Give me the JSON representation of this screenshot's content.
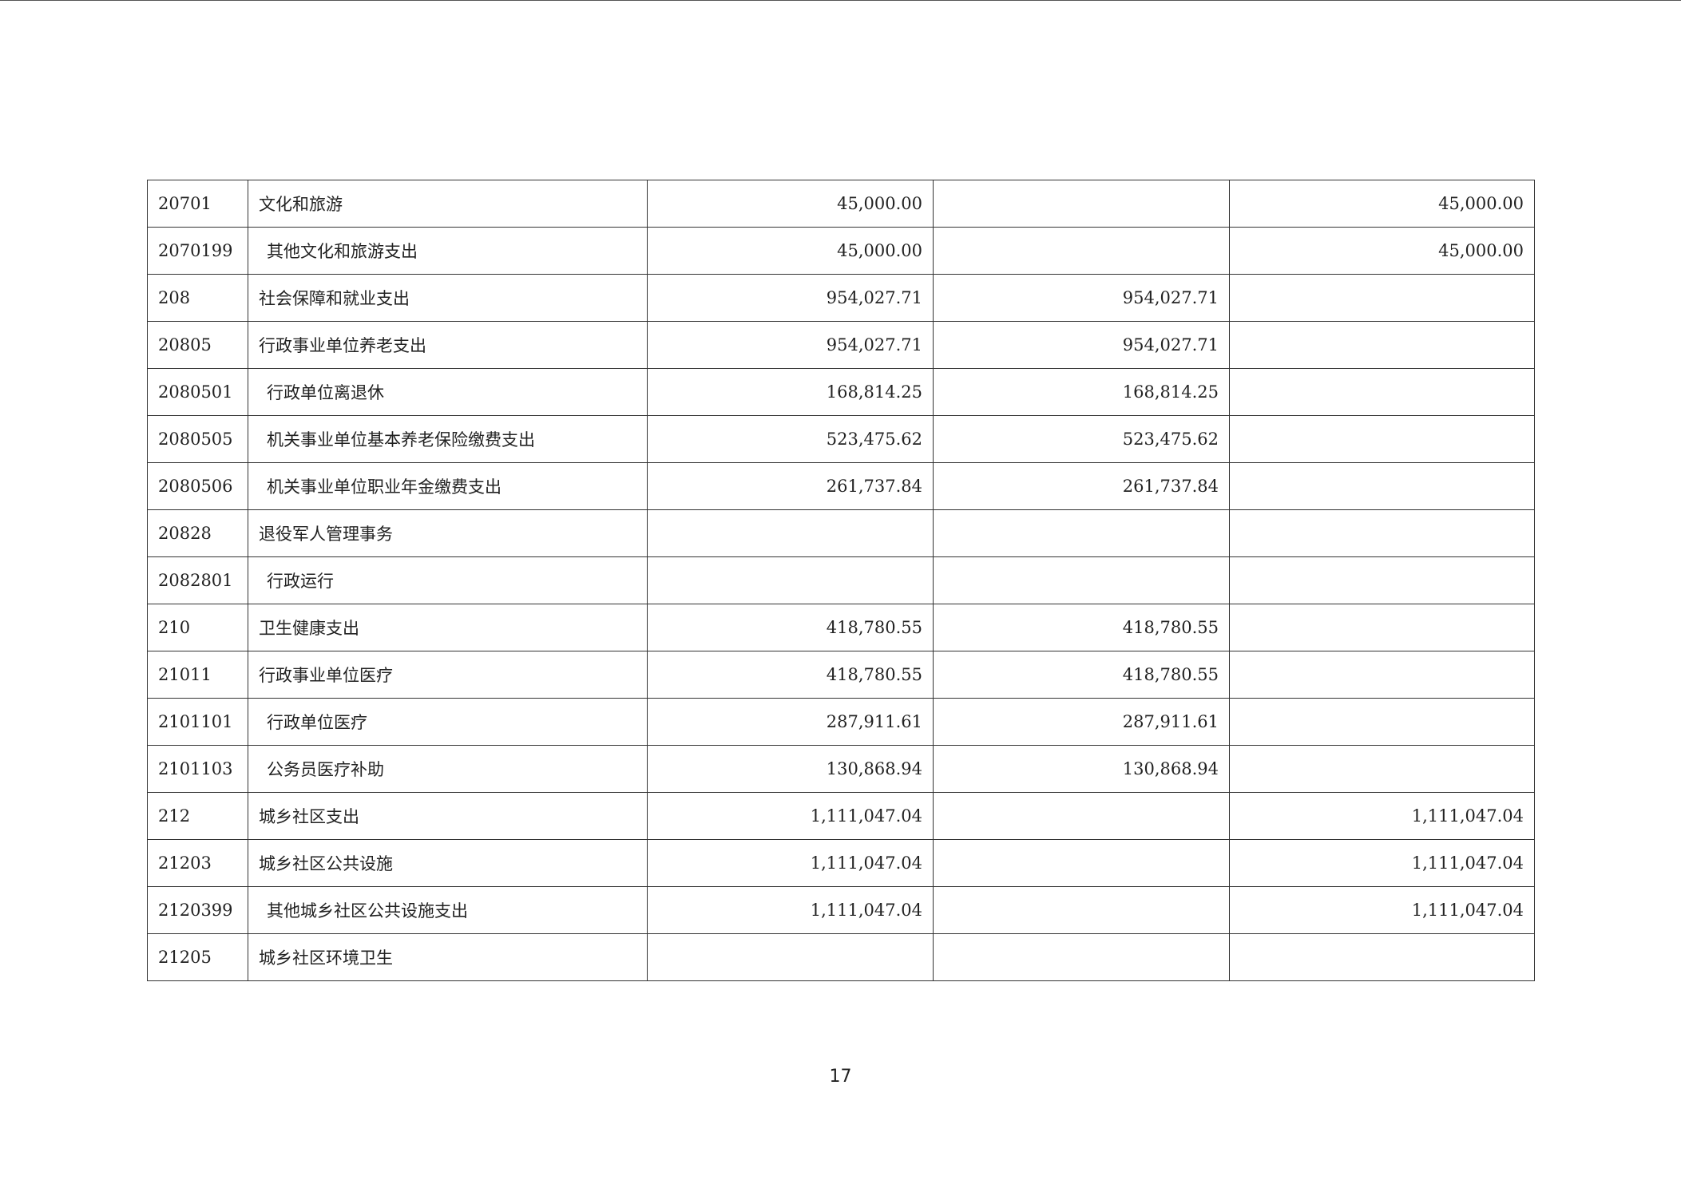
{
  "rows": [
    {
      "code": "20701",
      "name": "文化和旅游",
      "indent": false,
      "total": "45,000.00",
      "basic": "",
      "project": "45,000.00"
    },
    {
      "code": "2070199",
      "name": "其他文化和旅游支出",
      "indent": true,
      "total": "45,000.00",
      "basic": "",
      "project": "45,000.00"
    },
    {
      "code": "208",
      "name": "社会保障和就业支出",
      "indent": false,
      "total": "954,027.71",
      "basic": "954,027.71",
      "project": ""
    },
    {
      "code": "20805",
      "name": "行政事业单位养老支出",
      "indent": false,
      "total": "954,027.71",
      "basic": "954,027.71",
      "project": ""
    },
    {
      "code": "2080501",
      "name": "行政单位离退休",
      "indent": true,
      "total": "168,814.25",
      "basic": "168,814.25",
      "project": ""
    },
    {
      "code": "2080505",
      "name": "机关事业单位基本养老保险缴费支出",
      "indent": true,
      "total": "523,475.62",
      "basic": "523,475.62",
      "project": ""
    },
    {
      "code": "2080506",
      "name": "机关事业单位职业年金缴费支出",
      "indent": true,
      "total": "261,737.84",
      "basic": "261,737.84",
      "project": ""
    },
    {
      "code": "20828",
      "name": "退役军人管理事务",
      "indent": false,
      "total": "",
      "basic": "",
      "project": ""
    },
    {
      "code": "2082801",
      "name": "行政运行",
      "indent": true,
      "total": "",
      "basic": "",
      "project": ""
    },
    {
      "code": "210",
      "name": "卫生健康支出",
      "indent": false,
      "total": "418,780.55",
      "basic": "418,780.55",
      "project": ""
    },
    {
      "code": "21011",
      "name": "行政事业单位医疗",
      "indent": false,
      "total": "418,780.55",
      "basic": "418,780.55",
      "project": ""
    },
    {
      "code": "2101101",
      "name": "行政单位医疗",
      "indent": true,
      "total": "287,911.61",
      "basic": "287,911.61",
      "project": ""
    },
    {
      "code": "2101103",
      "name": "公务员医疗补助",
      "indent": true,
      "total": "130,868.94",
      "basic": "130,868.94",
      "project": ""
    },
    {
      "code": "212",
      "name": "城乡社区支出",
      "indent": false,
      "total": "1,111,047.04",
      "basic": "",
      "project": "1,111,047.04"
    },
    {
      "code": "21203",
      "name": "城乡社区公共设施",
      "indent": false,
      "total": "1,111,047.04",
      "basic": "",
      "project": "1,111,047.04"
    },
    {
      "code": "2120399",
      "name": "其他城乡社区公共设施支出",
      "indent": true,
      "total": "1,111,047.04",
      "basic": "",
      "project": "1,111,047.04"
    },
    {
      "code": "21205",
      "name": "城乡社区环境卫生",
      "indent": false,
      "total": "",
      "basic": "",
      "project": ""
    }
  ],
  "page_number": "17"
}
